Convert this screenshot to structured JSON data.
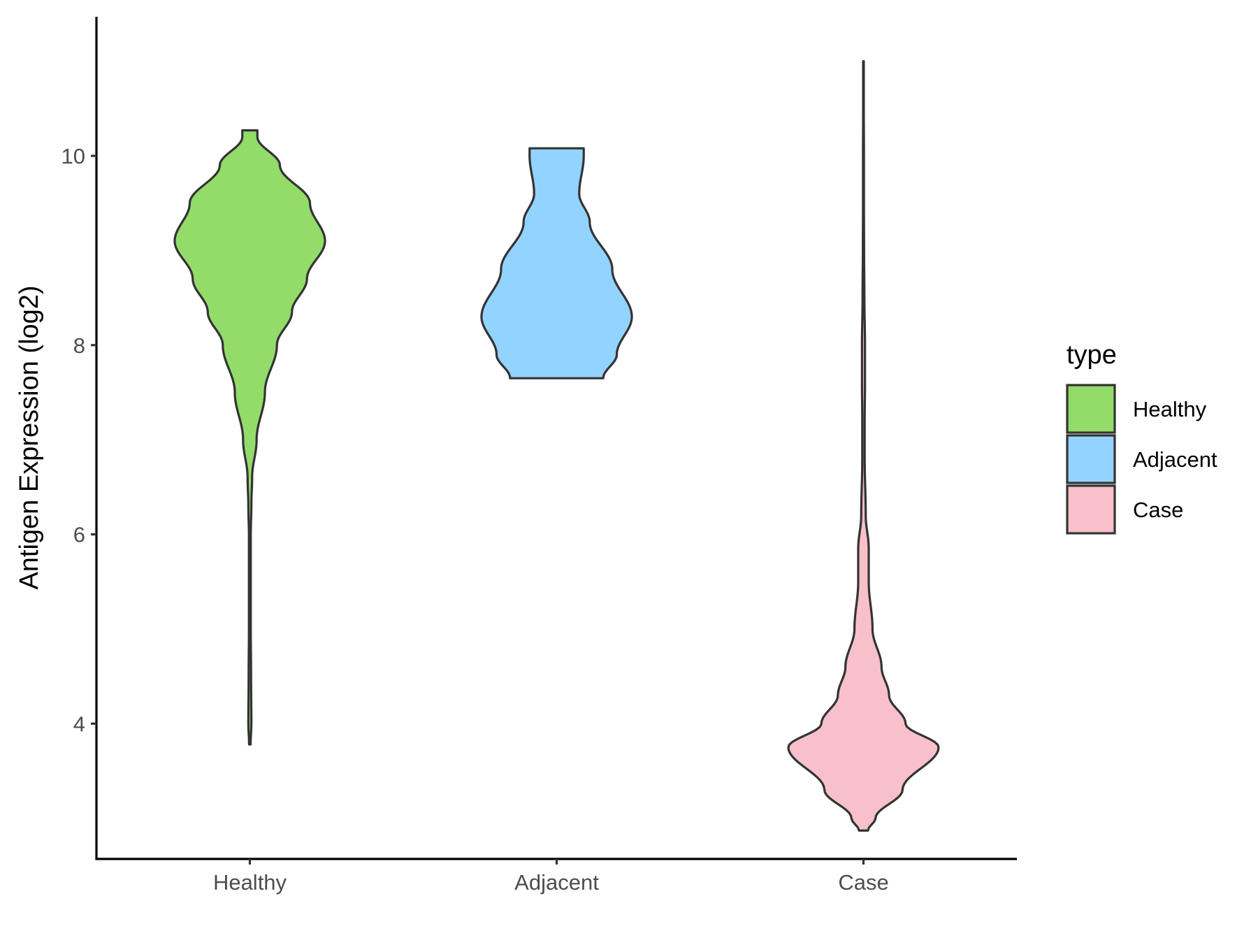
{
  "chart_data": {
    "type": "violin",
    "title": "",
    "xlabel": "",
    "ylabel": "Antigen Expression (log2)",
    "categories": [
      "Healthy",
      "Adjacent",
      "Case"
    ],
    "ylim": [
      2.57,
      11.47
    ],
    "yticks": [
      4,
      6,
      8,
      10
    ],
    "grid": false,
    "legend": {
      "title": "type",
      "position": "right",
      "entries": [
        {
          "label": "Healthy",
          "color": "#93DC6A"
        },
        {
          "label": "Adjacent",
          "color": "#93D3FF"
        },
        {
          "label": "Case",
          "color": "#F8C0CB"
        }
      ]
    },
    "series": [
      {
        "category": "Healthy",
        "color": "#93DC6A",
        "range": [
          3.78,
          10.27
        ],
        "density_profile": [
          [
            3.78,
            0.005
          ],
          [
            4.0,
            0.01
          ],
          [
            4.5,
            0.008
          ],
          [
            5.0,
            0.006
          ],
          [
            5.5,
            0.006
          ],
          [
            6.0,
            0.006
          ],
          [
            6.3,
            0.01
          ],
          [
            6.6,
            0.015
          ],
          [
            7.0,
            0.045
          ],
          [
            7.5,
            0.1
          ],
          [
            8.0,
            0.18
          ],
          [
            8.35,
            0.28
          ],
          [
            8.7,
            0.38
          ],
          [
            9.1,
            0.5
          ],
          [
            9.5,
            0.4
          ],
          [
            9.9,
            0.2
          ],
          [
            10.2,
            0.05
          ],
          [
            10.27,
            0.05
          ]
        ]
      },
      {
        "category": "Adjacent",
        "color": "#93D3FF",
        "range": [
          7.65,
          10.08
        ],
        "density_profile": [
          [
            7.65,
            0.31
          ],
          [
            7.9,
            0.4
          ],
          [
            8.3,
            0.5
          ],
          [
            8.8,
            0.37
          ],
          [
            9.3,
            0.22
          ],
          [
            9.6,
            0.15
          ],
          [
            10.0,
            0.18
          ],
          [
            10.08,
            0.18
          ]
        ]
      },
      {
        "category": "Case",
        "color": "#F8C0CB",
        "range": [
          2.87,
          11.0
        ],
        "density_profile": [
          [
            2.87,
            0.03
          ],
          [
            3.0,
            0.08
          ],
          [
            3.3,
            0.26
          ],
          [
            3.75,
            0.5
          ],
          [
            4.0,
            0.28
          ],
          [
            4.3,
            0.17
          ],
          [
            4.6,
            0.12
          ],
          [
            5.0,
            0.06
          ],
          [
            5.5,
            0.035
          ],
          [
            5.85,
            0.035
          ],
          [
            6.2,
            0.015
          ],
          [
            6.8,
            0.008
          ],
          [
            7.2,
            0.008
          ],
          [
            7.6,
            0.01
          ],
          [
            8.0,
            0.01
          ],
          [
            8.5,
            0.006
          ],
          [
            9.0,
            0.004
          ],
          [
            9.5,
            0.003
          ],
          [
            10.0,
            0.003
          ],
          [
            10.5,
            0.002
          ],
          [
            11.0,
            0.002
          ]
        ]
      }
    ]
  }
}
